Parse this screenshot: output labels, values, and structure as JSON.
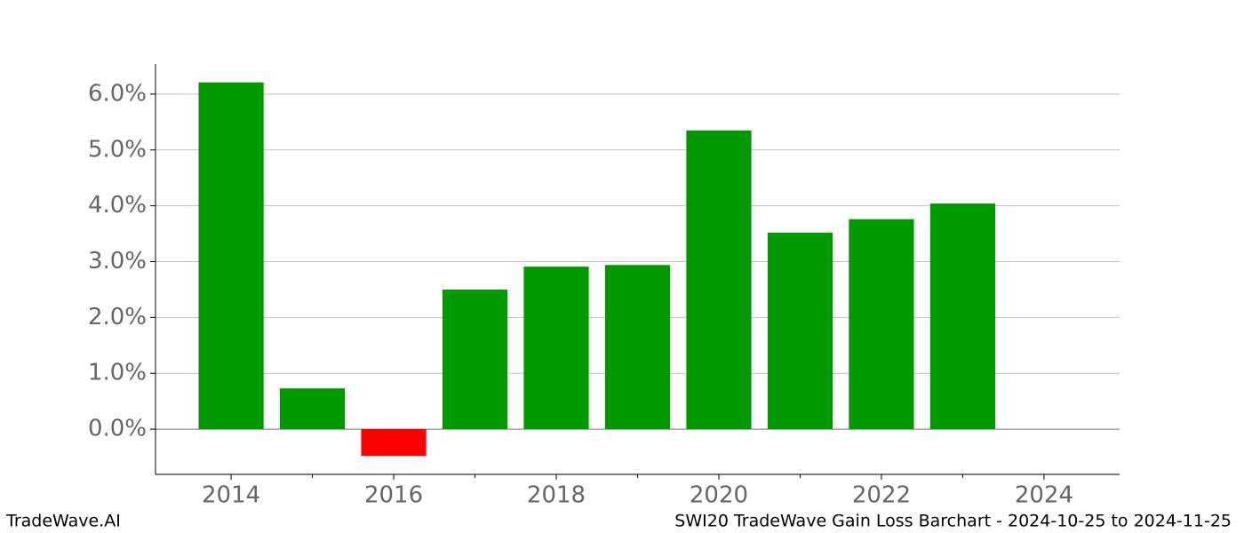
{
  "chart_data": {
    "type": "bar",
    "x": [
      2014,
      2015,
      2016,
      2017,
      2018,
      2019,
      2020,
      2021,
      2022,
      2023
    ],
    "values": [
      6.21,
      0.73,
      -0.48,
      2.5,
      2.91,
      2.94,
      5.35,
      3.52,
      3.76,
      4.04
    ],
    "color": "#009900",
    "negative_color": "#ff0000",
    "xlim": [
      2013.07,
      2024.93
    ],
    "xticks": [
      2014,
      2016,
      2018,
      2020,
      2022,
      2024
    ],
    "xminorticks": [
      2015,
      2017,
      2019,
      2021,
      2023
    ],
    "ylim": [
      -0.81,
      6.54
    ],
    "yticks": [
      {
        "value": 0,
        "label": "0.0%"
      },
      {
        "value": 1,
        "label": "1.0%"
      },
      {
        "value": 2,
        "label": "2.0%"
      },
      {
        "value": 3,
        "label": "3.0%"
      },
      {
        "value": 4,
        "label": "4.0%"
      },
      {
        "value": 5,
        "label": "5.0%"
      },
      {
        "value": 6,
        "label": "6.0%"
      }
    ],
    "grid": true,
    "footer_left": "TradeWave.AI",
    "footer_right": "SWI20 TradeWave Gain Loss Barchart - 2024-10-25 to 2024-11-25"
  }
}
